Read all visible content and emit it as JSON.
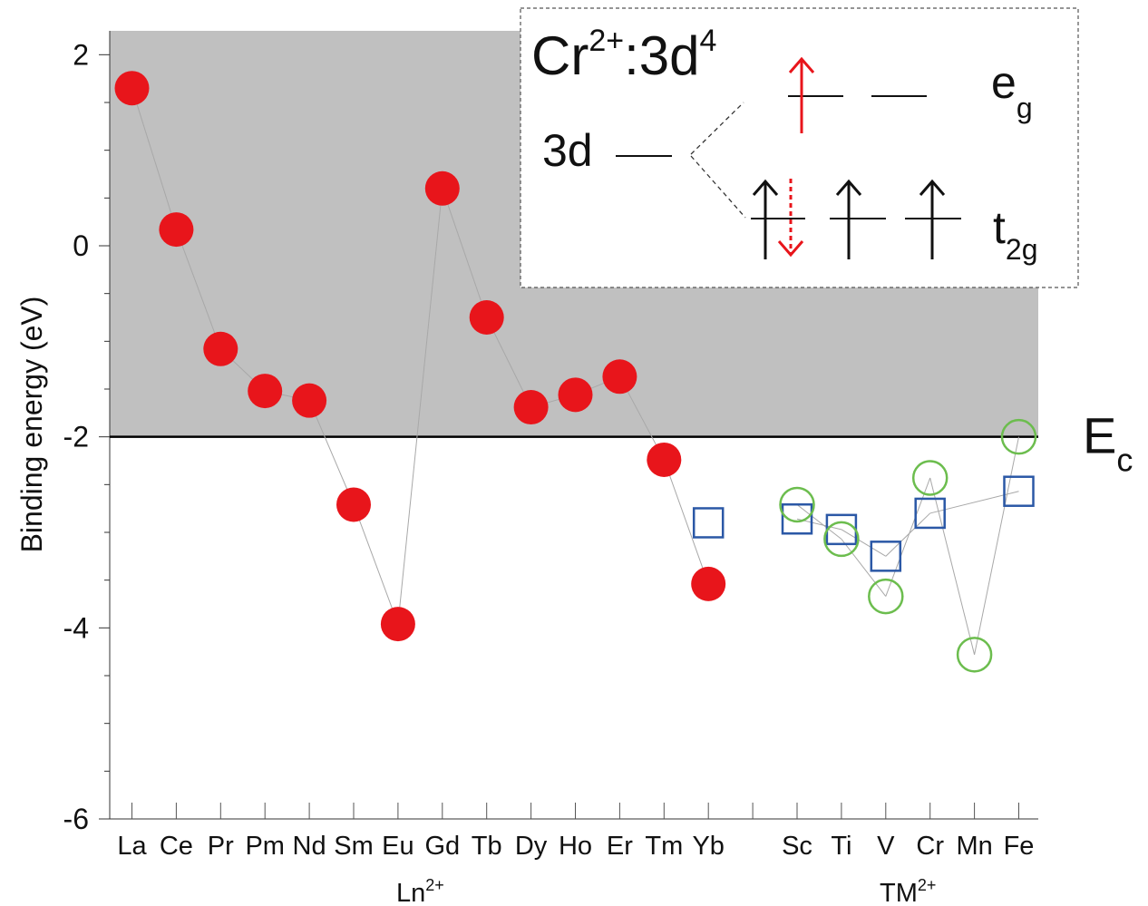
{
  "chart_data": {
    "type": "scatter",
    "ylabel": "Binding energy (eV)",
    "ylim": [
      -6,
      2.25
    ],
    "yticks": [
      -6,
      -4,
      -2,
      0,
      2
    ],
    "ytick_labels": [
      "-6",
      "-4",
      "-2",
      "0",
      "2"
    ],
    "groups": [
      {
        "label_base": "Ln",
        "label_sup": "2+",
        "categories": [
          "La",
          "Ce",
          "Pr",
          "Pm",
          "Nd",
          "Sm",
          "Eu",
          "Gd",
          "Tb",
          "Dy",
          "Ho",
          "Er",
          "Tm",
          "Yb"
        ]
      },
      {
        "label_base": "TM",
        "label_sup": "2+",
        "categories": [
          "Sc",
          "Ti",
          "V",
          "Cr",
          "Mn",
          "Fe"
        ]
      }
    ],
    "reference_line": {
      "y": -2.0,
      "label_base": "E",
      "label_sub": "c"
    },
    "shaded_region": {
      "from": -2.0,
      "to": 2.25,
      "color": "#c0c0c0"
    },
    "series": [
      {
        "marker": "filled-circle",
        "color": "#e8151b",
        "x": [
          "La",
          "Ce",
          "Pr",
          "Pm",
          "Nd",
          "Sm",
          "Eu",
          "Gd",
          "Tb",
          "Dy",
          "Ho",
          "Er",
          "Tm",
          "Yb"
        ],
        "values": [
          1.65,
          0.17,
          -1.08,
          -1.52,
          -1.62,
          -2.71,
          -3.96,
          0.6,
          -0.75,
          -1.69,
          -1.56,
          -1.37,
          -2.24,
          -3.54
        ]
      },
      {
        "marker": "open-square",
        "color": "#2b58a6",
        "x": [
          "Yb",
          "Sc",
          "Ti",
          "V",
          "Cr",
          "Fe"
        ],
        "values": [
          -2.9,
          -2.86,
          -2.97,
          -3.25,
          -2.8,
          -2.57
        ]
      },
      {
        "marker": "open-circle",
        "color": "#6cbd4e",
        "x": [
          "Sc",
          "Ti",
          "V",
          "Cr",
          "Mn",
          "Fe"
        ],
        "values": [
          -2.71,
          -3.07,
          -3.67,
          -2.43,
          -4.28,
          -2.0
        ]
      }
    ],
    "inset": {
      "title_base": "Cr",
      "title_sup": "2+",
      "title_rest": ":3d",
      "title_sup2": "4",
      "level_label": "3d",
      "eg_base": "e",
      "eg_sub": "g",
      "t2g_base": "t",
      "t2g_sub": "2g",
      "arrow_color": "#e8151b"
    }
  }
}
